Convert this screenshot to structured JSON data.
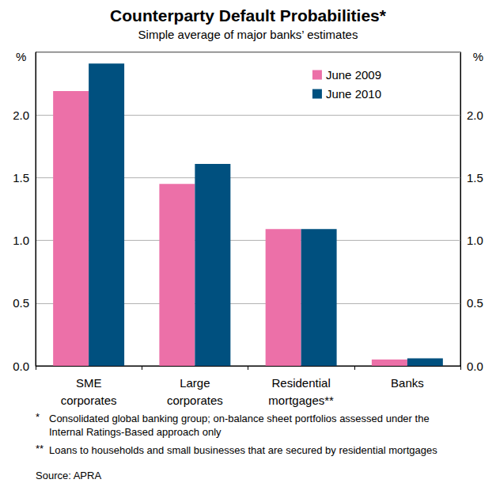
{
  "chart_data": {
    "type": "bar",
    "title": "Counterparty Default Probabilities*",
    "subtitle": "Simple average of major banks’ estimates",
    "ylabel": "%",
    "categories": [
      "SME\ncorporates",
      "Large\ncorporates",
      "Residential\nmortgages**",
      "Banks"
    ],
    "series": [
      {
        "name": "June 2009",
        "color": "#ec70a8",
        "values": [
          2.19,
          1.45,
          1.09,
          0.05
        ]
      },
      {
        "name": "June 2010",
        "color": "#00507f",
        "values": [
          2.41,
          1.61,
          1.09,
          0.06
        ]
      }
    ],
    "ylim": [
      0,
      2.5
    ],
    "yticks": [
      {
        "value": 0,
        "label": "0.0"
      },
      {
        "value": 0.5,
        "label": "0.5"
      },
      {
        "value": 1,
        "label": "1.0"
      },
      {
        "value": 1.5,
        "label": "1.5"
      },
      {
        "value": 2,
        "label": "2.0"
      }
    ],
    "grid": true,
    "legend": "upper right",
    "data_labels": false,
    "notes": [
      {
        "mark": "*",
        "text": "Consolidated global banking group; on-balance sheet portfolios assessed under the Internal Ratings-Based approach only"
      },
      {
        "mark": "**",
        "text": "Loans to households and small businesses that are secured by residential mortgages"
      }
    ],
    "source": "Source: APRA"
  }
}
